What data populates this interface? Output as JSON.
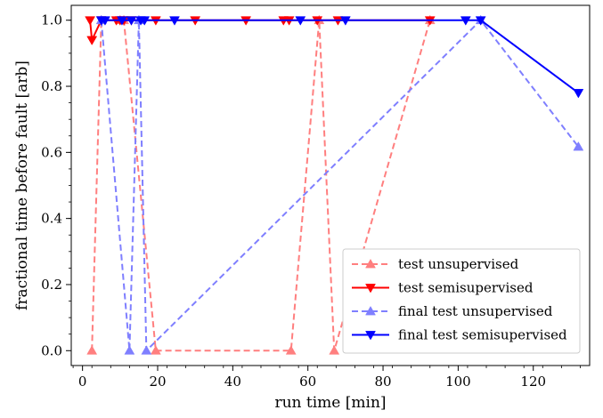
{
  "chart_data": {
    "type": "line",
    "xlabel": "run time [min]",
    "ylabel": "fractional time before fault [arb]",
    "xlim": [
      -3,
      135
    ],
    "ylim": [
      -0.045,
      1.045
    ],
    "xticks": [
      0,
      20,
      40,
      60,
      80,
      100,
      120
    ],
    "yticks": [
      0.0,
      0.2,
      0.4,
      0.6,
      0.8,
      1.0
    ],
    "xtick_labels": [
      "0",
      "20",
      "40",
      "60",
      "80",
      "100",
      "120"
    ],
    "ytick_labels": [
      "0.0",
      "0.2",
      "0.4",
      "0.6",
      "0.8",
      "1.0"
    ],
    "legend_position": "lower-right",
    "grid": false,
    "series": [
      {
        "name": "test unsupervised",
        "color": "#ff7f7f",
        "linestyle": "dashed",
        "marker": "triangle-up",
        "x": [
          2.5,
          5,
          10,
          11,
          19.5,
          55.5,
          63,
          67,
          92.5
        ],
        "y": [
          0.0,
          1.0,
          1.0,
          1.0,
          0.0,
          0.0,
          1.0,
          0.0,
          1.0
        ]
      },
      {
        "name": "test semisupervised",
        "color": "#ff0000",
        "linestyle": "solid",
        "marker": "triangle-down",
        "x": [
          2,
          2.5,
          5,
          9,
          10,
          11,
          13,
          19.5,
          30,
          43.5,
          53.5,
          55,
          62.5,
          68,
          92.5
        ],
        "y": [
          1.0,
          0.94,
          1.0,
          1.0,
          1.0,
          1.0,
          1.0,
          1.0,
          1.0,
          1.0,
          1.0,
          1.0,
          1.0,
          1.0,
          1.0
        ]
      },
      {
        "name": "final test unsupervised",
        "color": "#7f7fff",
        "linestyle": "dashed",
        "marker": "triangle-up",
        "x": [
          5,
          12.5,
          15,
          17,
          106,
          132
        ],
        "y": [
          1.0,
          0.0,
          1.0,
          0.0,
          1.0,
          0.617
        ]
      },
      {
        "name": "final test semisupervised",
        "color": "#0000ff",
        "linestyle": "solid",
        "marker": "triangle-down",
        "x": [
          5,
          6,
          10.5,
          13,
          15.5,
          16.5,
          24.5,
          58,
          70,
          102,
          106,
          132
        ],
        "y": [
          1.0,
          1.0,
          1.0,
          1.0,
          1.0,
          1.0,
          1.0,
          1.0,
          1.0,
          1.0,
          1.0,
          0.78
        ]
      }
    ]
  }
}
